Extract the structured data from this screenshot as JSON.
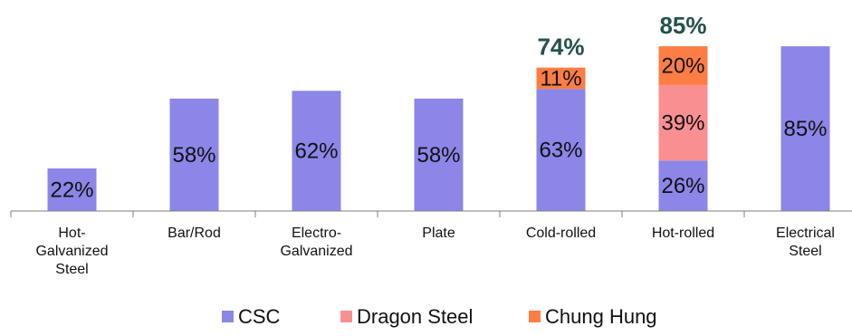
{
  "chart_data": {
    "type": "bar",
    "stacked": true,
    "categories": [
      [
        "Hot-",
        "Galvanized",
        "Steel"
      ],
      [
        "Bar/Rod"
      ],
      [
        "Electro-",
        "Galvanized"
      ],
      [
        "Plate"
      ],
      [
        "Cold-rolled"
      ],
      [
        "Hot-rolled"
      ],
      [
        "Electrical",
        "Steel"
      ]
    ],
    "series": [
      {
        "name": "CSC",
        "color": "#8b86e8",
        "values": [
          22,
          58,
          62,
          58,
          63,
          26,
          85
        ]
      },
      {
        "name": "Dragon Steel",
        "color": "#fa8f91",
        "values": [
          0,
          0,
          0,
          0,
          0,
          39,
          0
        ]
      },
      {
        "name": "Chung Hung",
        "color": "#fd7d45",
        "values": [
          0,
          0,
          0,
          0,
          11,
          20,
          0
        ]
      }
    ],
    "data_labels": [
      [
        "22%",
        "58%",
        "62%",
        "58%",
        "63%",
        "26%",
        "85%"
      ],
      [
        "",
        "",
        "",
        "",
        "",
        "39%",
        ""
      ],
      [
        "",
        "",
        "",
        "",
        "11%",
        "20%",
        ""
      ]
    ],
    "totals": [
      "",
      "",
      "",
      "",
      "74%",
      "85%",
      ""
    ],
    "ylim": [
      0,
      100
    ],
    "legend": "bottom",
    "grid": false
  }
}
